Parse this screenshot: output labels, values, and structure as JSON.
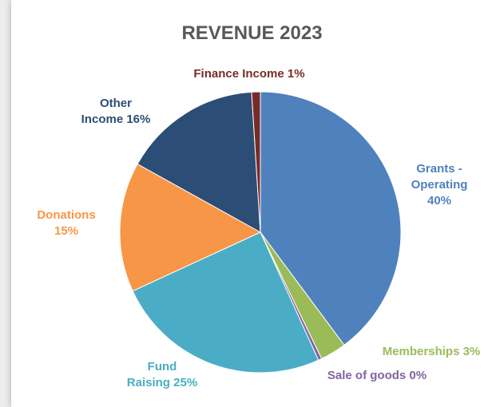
{
  "chart_data": {
    "type": "pie",
    "title": "REVENUE 2023",
    "categories": [
      "Grants - Operating",
      "Memberships",
      "Sale of goods",
      "Fund Raising",
      "Donations",
      "Other Income",
      "Finance Income"
    ],
    "values": [
      40,
      3,
      0.4,
      25,
      15,
      16,
      1
    ],
    "value_labels": [
      "40%",
      "3%",
      "0%",
      "25%",
      "15%",
      "16%",
      "1%"
    ],
    "colors": [
      "#4f81bd",
      "#9bbb59",
      "#8064a2",
      "#4bacc6",
      "#f79646",
      "#2c4d75",
      "#772c2a"
    ]
  }
}
